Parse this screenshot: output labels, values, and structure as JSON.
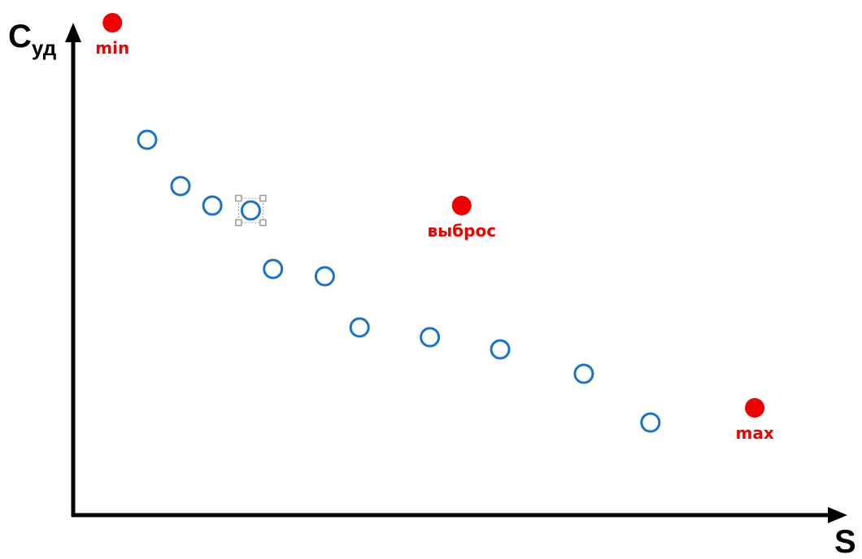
{
  "chart_data": {
    "type": "scatter",
    "ylabel_main": "C",
    "ylabel_sub": "уд",
    "xlabel": "S",
    "xlim": [
      0,
      100
    ],
    "ylim": [
      0,
      100
    ],
    "grid": false,
    "series": [
      {
        "role": "normal",
        "marker": "hollow-circle",
        "color": "#1a73c8",
        "points": [
          {
            "x": 10,
            "y": 77
          },
          {
            "x": 14.5,
            "y": 67.5
          },
          {
            "x": 18.8,
            "y": 63.5
          },
          {
            "x": 24,
            "y": 62.5,
            "selected": true
          },
          {
            "x": 27,
            "y": 50.5
          },
          {
            "x": 34,
            "y": 49
          },
          {
            "x": 38.7,
            "y": 38.5
          },
          {
            "x": 48.2,
            "y": 36.5
          },
          {
            "x": 57.7,
            "y": 34
          },
          {
            "x": 69,
            "y": 29
          },
          {
            "x": 78,
            "y": 19
          }
        ]
      },
      {
        "role": "highlighted",
        "marker": "filled-circle",
        "color": "#ee0000",
        "points": [
          {
            "x": 5.3,
            "y": 101,
            "label": "min"
          },
          {
            "x": 52.5,
            "y": 63.5,
            "label": "выброс"
          },
          {
            "x": 92.1,
            "y": 22,
            "label": "max"
          }
        ]
      }
    ]
  }
}
